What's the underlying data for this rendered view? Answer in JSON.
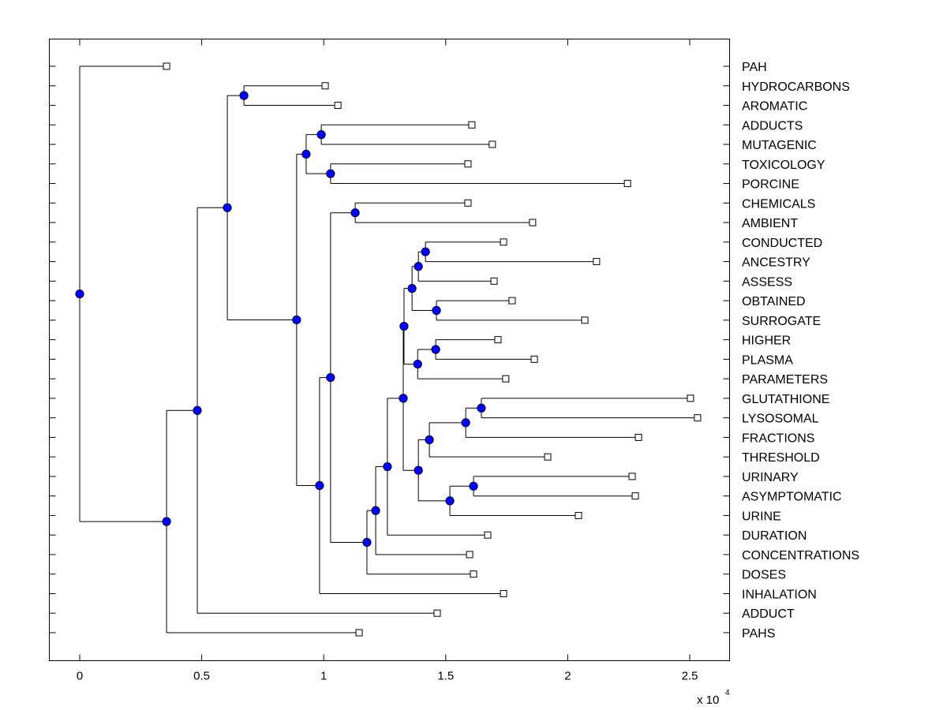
{
  "chart_data": {
    "type": "dendrogram",
    "title": "",
    "xlabel": "",
    "ylabel": "",
    "x_multiplier_label": "x 10",
    "x_multiplier_exponent": "4",
    "xlim": [
      -0.125,
      2.67
    ],
    "xticks": [
      0,
      0.5,
      1,
      1.5,
      2,
      2.5
    ],
    "xtick_labels": [
      "0",
      "0.5",
      "1",
      "1.5",
      "2",
      "2.5"
    ],
    "grid": false,
    "colors": {
      "line": "#000000",
      "internal_node": "#0000ff",
      "leaf_node": "#ffffff"
    },
    "leaves": [
      {
        "label": "PAH",
        "value": 0.356
      },
      {
        "label": "HYDROCARBONS",
        "value": 1.006
      },
      {
        "label": "AROMATIC",
        "value": 1.058
      },
      {
        "label": "ADDUCTS",
        "value": 1.607
      },
      {
        "label": "MUTAGENIC",
        "value": 1.691
      },
      {
        "label": "TOXICOLOGY",
        "value": 1.591
      },
      {
        "label": "PORCINE",
        "value": 2.245
      },
      {
        "label": "CHEMICALS",
        "value": 1.591
      },
      {
        "label": "AMBIENT",
        "value": 1.856
      },
      {
        "label": "CONDUCTED",
        "value": 1.737
      },
      {
        "label": "ANCESTRY",
        "value": 2.118
      },
      {
        "label": "ASSESS",
        "value": 1.698
      },
      {
        "label": "OBTAINED",
        "value": 1.772
      },
      {
        "label": "SURROGATE",
        "value": 2.07
      },
      {
        "label": "HIGHER",
        "value": 1.714
      },
      {
        "label": "PLASMA",
        "value": 1.863
      },
      {
        "label": "PARAMETERS",
        "value": 1.746
      },
      {
        "label": "GLUTATHIONE",
        "value": 2.503
      },
      {
        "label": "LYSOSOMAL",
        "value": 2.532
      },
      {
        "label": "FRACTIONS",
        "value": 2.29
      },
      {
        "label": "THRESHOLD",
        "value": 1.918
      },
      {
        "label": "URINARY",
        "value": 2.264
      },
      {
        "label": "ASYMPTOMATIC",
        "value": 2.277
      },
      {
        "label": "URINE",
        "value": 2.044
      },
      {
        "label": "DURATION",
        "value": 1.672
      },
      {
        "label": "CONCENTRATIONS",
        "value": 1.598
      },
      {
        "label": "DOSES",
        "value": 1.614
      },
      {
        "label": "INHALATION",
        "value": 1.737
      },
      {
        "label": "ADDUCT",
        "value": 1.465
      },
      {
        "label": "PAHS",
        "value": 1.145
      }
    ],
    "tree": {
      "value": 0.0,
      "children": [
        {
          "leaf": 0
        },
        {
          "value": 0.356,
          "children": [
            {
              "value": 0.482,
              "children": [
                {
                  "value": 0.605,
                  "children": [
                    {
                      "value": 0.673,
                      "children": [
                        {
                          "leaf": 1
                        },
                        {
                          "leaf": 2
                        }
                      ]
                    },
                    {
                      "value": 0.889,
                      "children": [
                        {
                          "value": 0.928,
                          "children": [
                            {
                              "value": 0.99,
                              "children": [
                                {
                                  "leaf": 3
                                },
                                {
                                  "leaf": 4
                                }
                              ]
                            },
                            {
                              "value": 1.028,
                              "children": [
                                {
                                  "leaf": 5
                                },
                                {
                                  "leaf": 6
                                }
                              ]
                            }
                          ]
                        },
                        {
                          "value": 0.983,
                          "children": [
                            {
                              "value": 1.028,
                              "children": [
                                {
                                  "value": 1.129,
                                  "children": [
                                    {
                                      "leaf": 7
                                    },
                                    {
                                      "leaf": 8
                                    }
                                  ]
                                },
                                {
                                  "value": 1.177,
                                  "children": [
                                    {
                                      "value": 1.213,
                                      "children": [
                                        {
                                          "value": 1.261,
                                          "children": [
                                            {
                                              "value": 1.326,
                                              "children": [
                                                {
                                                  "value": 1.329,
                                                  "children": [
                                                    {
                                                      "value": 1.362,
                                                      "children": [
                                                        {
                                                          "value": 1.388,
                                                          "children": [
                                                            {
                                                              "value": 1.417,
                                                              "children": [
                                                                {
                                                                  "leaf": 9
                                                                },
                                                                {
                                                                  "leaf": 10
                                                                }
                                                              ]
                                                            },
                                                            {
                                                              "leaf": 11
                                                            }
                                                          ]
                                                        },
                                                        {
                                                          "value": 1.462,
                                                          "children": [
                                                            {
                                                              "leaf": 12
                                                            },
                                                            {
                                                              "leaf": 13
                                                            }
                                                          ]
                                                        }
                                                      ]
                                                    },
                                                    {
                                                      "value": 1.385,
                                                      "children": [
                                                        {
                                                          "value": 1.459,
                                                          "children": [
                                                            {
                                                              "leaf": 14
                                                            },
                                                            {
                                                              "leaf": 15
                                                            }
                                                          ]
                                                        },
                                                        {
                                                          "leaf": 16
                                                        }
                                                      ]
                                                    }
                                                  ]
                                                },
                                                {
                                                  "value": 1.388,
                                                  "children": [
                                                    {
                                                      "value": 1.433,
                                                      "children": [
                                                        {
                                                          "value": 1.582,
                                                          "children": [
                                                            {
                                                              "value": 1.646,
                                                              "children": [
                                                                {
                                                                  "leaf": 17
                                                                },
                                                                {
                                                                  "leaf": 18
                                                                }
                                                              ]
                                                            },
                                                            {
                                                              "leaf": 19
                                                            }
                                                          ]
                                                        },
                                                        {
                                                          "leaf": 20
                                                        }
                                                      ]
                                                    },
                                                    {
                                                      "value": 1.517,
                                                      "children": [
                                                        {
                                                          "value": 1.614,
                                                          "children": [
                                                            {
                                                              "leaf": 21
                                                            },
                                                            {
                                                              "leaf": 22
                                                            }
                                                          ]
                                                        },
                                                        {
                                                          "leaf": 23
                                                        }
                                                      ]
                                                    }
                                                  ]
                                                }
                                              ]
                                            },
                                            {
                                              "leaf": 24
                                            }
                                          ]
                                        },
                                        {
                                          "leaf": 25
                                        }
                                      ]
                                    },
                                    {
                                      "leaf": 26
                                    }
                                  ]
                                }
                              ]
                            },
                            {
                              "leaf": 27
                            }
                          ]
                        }
                      ]
                    }
                  ]
                },
                {
                  "leaf": 28
                }
              ]
            },
            {
              "leaf": 29
            }
          ]
        }
      ]
    }
  }
}
